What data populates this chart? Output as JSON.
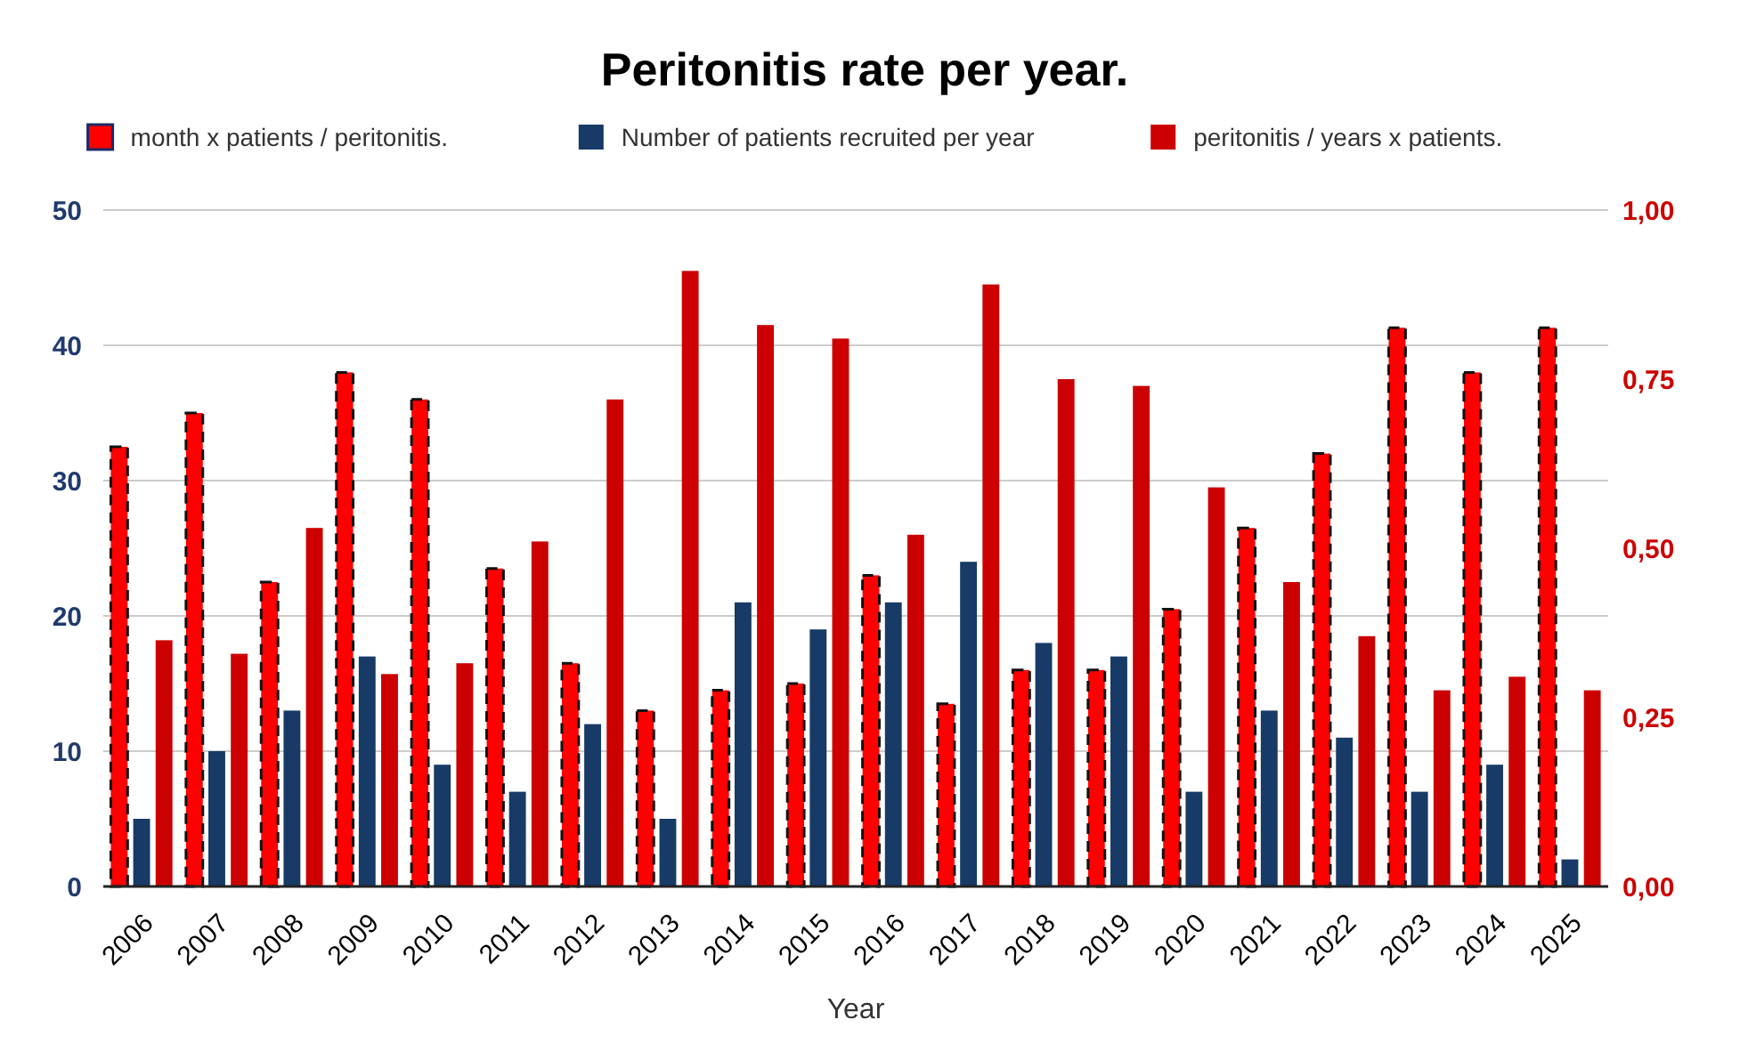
{
  "chart_data": {
    "type": "bar",
    "title": "Peritonitis rate per year.",
    "xlabel": "Year",
    "categories": [
      "2006",
      "2007",
      "2008",
      "2009",
      "2010",
      "2011",
      "2012",
      "2013",
      "2014",
      "2015",
      "2016",
      "2017",
      "2018",
      "2019",
      "2020",
      "2021",
      "2022",
      "2023",
      "2024",
      "2025"
    ],
    "series": [
      {
        "name": "month x patients / peritonitis.",
        "color": "#ff0000",
        "line_style": "dashed",
        "values": [
          32.5,
          35,
          22.5,
          38,
          36,
          23.5,
          16.5,
          13,
          14.5,
          15,
          23,
          13.5,
          16,
          16,
          20.5,
          26.5,
          32,
          41.3,
          38,
          41.3
        ]
      },
      {
        "name": "Number of patients recruited per year",
        "color": "#173a66",
        "values": [
          5,
          10,
          13,
          17,
          9,
          7,
          12,
          5,
          21,
          19,
          21,
          24,
          18,
          17,
          7,
          13,
          11,
          7,
          9,
          2
        ]
      },
      {
        "name": "peritonitis / years x patients.",
        "color": "#cc0000",
        "axis": "y2",
        "values": [
          0.364,
          0.344,
          0.53,
          0.314,
          0.33,
          0.51,
          0.72,
          0.91,
          0.83,
          0.81,
          0.52,
          0.89,
          0.75,
          0.74,
          0.59,
          0.45,
          0.37,
          0.29,
          0.31,
          0.29
        ]
      }
    ],
    "ylim": [
      0,
      50
    ],
    "yticks": [
      0,
      10,
      20,
      30,
      40,
      50
    ],
    "y2lim": [
      0,
      1
    ],
    "y2ticks": [
      {
        "value": 0,
        "label": "0,00"
      },
      {
        "value": 0.25,
        "label": "0,25"
      },
      {
        "value": 0.5,
        "label": "0,50"
      },
      {
        "value": 0.75,
        "label": "0,75"
      },
      {
        "value": 1,
        "label": "1,00"
      }
    ],
    "grid": "y",
    "legend": "top"
  }
}
